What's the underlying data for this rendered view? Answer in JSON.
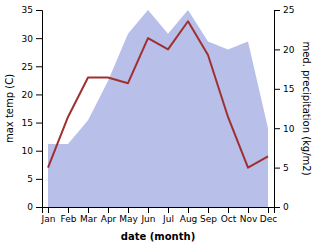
{
  "chart_data": {
    "type": "line",
    "categories": [
      "Jan",
      "Feb",
      "Mar",
      "Apr",
      "May",
      "Jun",
      "Jul",
      "Aug",
      "Sep",
      "Oct",
      "Nov",
      "Dec"
    ],
    "xlabel": "date (month)",
    "ylabel": "max temp (C)",
    "y2label": "med. precipitation (kg/m2)",
    "ylim": [
      0,
      35
    ],
    "yticks": [
      0,
      5,
      10,
      15,
      20,
      25,
      30,
      35
    ],
    "y2lim": [
      0,
      25
    ],
    "y2ticks": [
      0,
      5,
      10,
      15,
      20,
      25
    ],
    "grid": false,
    "series": [
      {
        "type": "area",
        "axis": "y2",
        "color": "#b8bfe8",
        "values": [
          8,
          8,
          11,
          16,
          22,
          25,
          22,
          25,
          21,
          20,
          21,
          10
        ]
      },
      {
        "type": "line",
        "color": "#a03030",
        "values": [
          7,
          16,
          23,
          23,
          22,
          30,
          28,
          33,
          27,
          16,
          7,
          9
        ]
      }
    ]
  }
}
